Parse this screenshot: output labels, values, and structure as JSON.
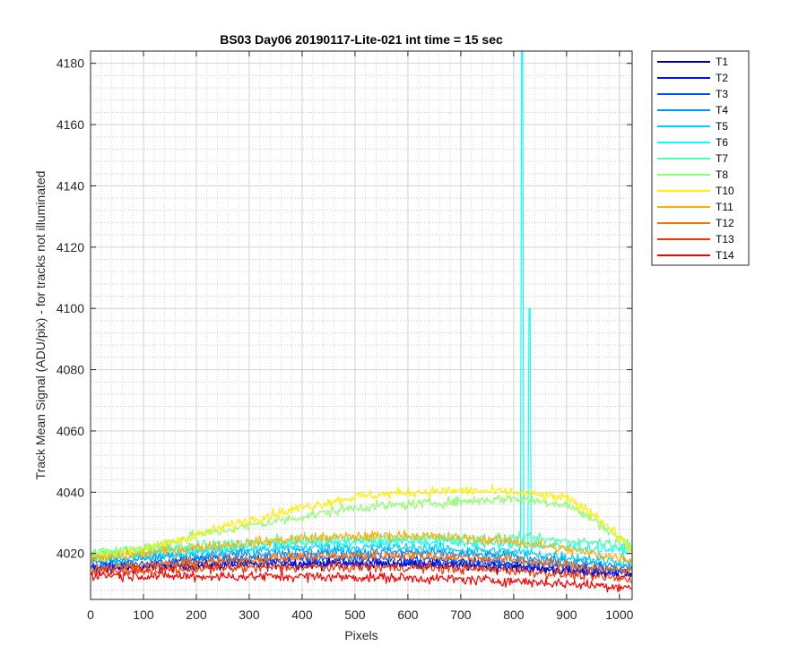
{
  "chart_data": {
    "type": "line",
    "title": "BS03 Day06 20190117-Lite-021 int time = 15 sec",
    "xlabel": "Pixels",
    "ylabel": "Track Mean Signal (ADU/pix) - for tracks not illuminated",
    "xlim": [
      0,
      1024
    ],
    "ylim": [
      4005,
      4184
    ],
    "x_ticks": [
      0,
      100,
      200,
      300,
      400,
      500,
      600,
      700,
      800,
      900,
      1000
    ],
    "y_ticks": [
      4020,
      4040,
      4060,
      4080,
      4100,
      4120,
      4140,
      4160,
      4180
    ],
    "grid": "major and minor, dotted",
    "legend_position": "outside-right-top",
    "series": [
      {
        "name": "T1",
        "color": "#00008f",
        "x": [
          0,
          200,
          400,
          600,
          800,
          1024
        ],
        "y": [
          4015,
          4016,
          4016.5,
          4016.5,
          4015.5,
          4013
        ],
        "noise": 1.6
      },
      {
        "name": "T2",
        "color": "#0010ff",
        "x": [
          0,
          200,
          400,
          600,
          800,
          1024
        ],
        "y": [
          4015,
          4016.5,
          4017,
          4017,
          4016,
          4013.5
        ],
        "noise": 1.6
      },
      {
        "name": "T3",
        "color": "#0050ff",
        "x": [
          0,
          200,
          400,
          600,
          800,
          1024
        ],
        "y": [
          4016,
          4018,
          4018.5,
          4018.5,
          4017,
          4014.5
        ],
        "noise": 1.6
      },
      {
        "name": "T4",
        "color": "#0090ff",
        "x": [
          0,
          200,
          400,
          600,
          800,
          1024
        ],
        "y": [
          4017,
          4019.5,
          4020.5,
          4020.5,
          4019,
          4015.5
        ],
        "noise": 1.6
      },
      {
        "name": "T5",
        "color": "#00d0ff",
        "x": [
          0,
          200,
          400,
          600,
          800,
          1024
        ],
        "y": [
          4018,
          4020.5,
          4022,
          4022,
          4020.5,
          4017
        ],
        "noise": 1.6
      },
      {
        "name": "T6",
        "color": "#10ffef",
        "x": [
          0,
          200,
          400,
          600,
          800,
          1024
        ],
        "y": [
          4019,
          4021.5,
          4023.5,
          4024,
          4023,
          4021
        ],
        "noise": 1.6,
        "spikes": [
          {
            "x": 816,
            "y": 4184
          },
          {
            "x": 830,
            "y": 4100
          }
        ]
      },
      {
        "name": "T7",
        "color": "#50ffaf",
        "x": [
          0,
          200,
          400,
          600,
          800,
          1024
        ],
        "y": [
          4020,
          4022.5,
          4024.5,
          4025,
          4025,
          4023
        ],
        "noise": 1.6
      },
      {
        "name": "T8",
        "color": "#90ff6f",
        "x": [
          0,
          100,
          200,
          300,
          400,
          500,
          600,
          700,
          800,
          900,
          960,
          1024
        ],
        "y": [
          4020,
          4022,
          4026,
          4029,
          4032,
          4035,
          4036,
          4037,
          4038,
          4036,
          4030,
          4022
        ],
        "noise": 1.6
      },
      {
        "name": "T10",
        "color": "#ffef00",
        "x": [
          0,
          100,
          200,
          300,
          400,
          500,
          600,
          700,
          800,
          900,
          960,
          1024
        ],
        "y": [
          4019,
          4021,
          4026,
          4031,
          4035,
          4038.5,
          4040,
          4040.5,
          4040,
          4038,
          4032,
          4021
        ],
        "noise": 1.6
      },
      {
        "name": "T11",
        "color": "#ffaf00",
        "x": [
          0,
          200,
          400,
          600,
          800,
          1024
        ],
        "y": [
          4018,
          4022,
          4025,
          4026,
          4024,
          4018
        ],
        "noise": 1.6
      },
      {
        "name": "T12",
        "color": "#ff7000",
        "x": [
          0,
          200,
          400,
          600,
          800,
          1024
        ],
        "y": [
          4015,
          4017,
          4019,
          4019.5,
          4018,
          4014
        ],
        "noise": 1.6
      },
      {
        "name": "T13",
        "color": "#ff3000",
        "x": [
          0,
          200,
          400,
          600,
          800,
          1024
        ],
        "y": [
          4014,
          4015,
          4015.5,
          4015.5,
          4014.5,
          4011.5
        ],
        "noise": 1.6
      },
      {
        "name": "T14",
        "color": "#ff0000",
        "x": [
          0,
          200,
          400,
          600,
          800,
          1024
        ],
        "y": [
          4013,
          4012.5,
          4012.5,
          4012,
          4011,
          4009
        ],
        "noise": 1.6
      }
    ]
  }
}
